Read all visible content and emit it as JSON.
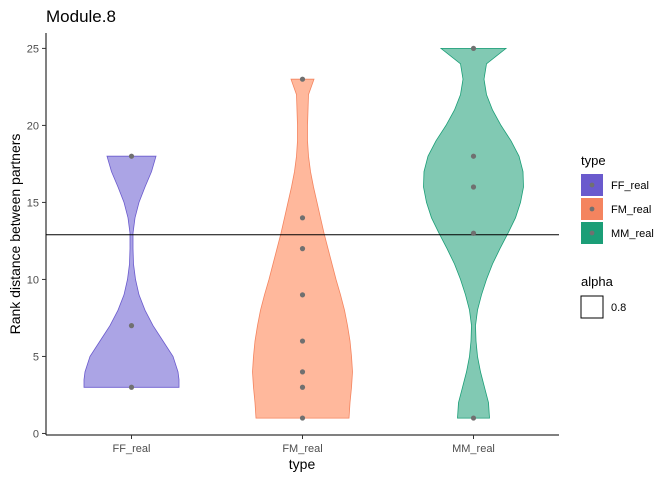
{
  "chart_data": {
    "type": "violin",
    "title": "Module.8",
    "xlabel": "type",
    "ylabel": "Rank distance between partners",
    "ylim": [
      -0.1,
      26
    ],
    "yticks": [
      0,
      5,
      10,
      15,
      20,
      25
    ],
    "categories": [
      "FF_real",
      "FM_real",
      "MM_real"
    ],
    "reference_line_y": 12.9,
    "point_color": "#707070",
    "series": [
      {
        "name": "FF_real",
        "fill": "#ABA4E5",
        "stroke": "#6A5ACD",
        "points": [
          3,
          7,
          18
        ],
        "violin": [
          [
            3,
            0.95
          ],
          [
            3.5,
            0.95
          ],
          [
            4,
            0.93
          ],
          [
            5,
            0.83
          ],
          [
            6,
            0.63
          ],
          [
            7,
            0.43
          ],
          [
            8,
            0.27
          ],
          [
            9,
            0.15
          ],
          [
            10,
            0.08
          ],
          [
            11,
            0.04
          ],
          [
            12,
            0.03
          ],
          [
            13,
            0.03
          ],
          [
            14,
            0.07
          ],
          [
            15,
            0.15
          ],
          [
            16,
            0.27
          ],
          [
            17,
            0.4
          ],
          [
            18,
            0.49
          ]
        ]
      },
      {
        "name": "FM_real",
        "fill": "#FFB89C",
        "stroke": "#F4845F",
        "points": [
          1,
          3,
          4,
          6,
          9,
          12,
          14,
          23
        ],
        "violin": [
          [
            1,
            0.93
          ],
          [
            2,
            0.95
          ],
          [
            3,
            0.98
          ],
          [
            4,
            1.0
          ],
          [
            5,
            0.98
          ],
          [
            6,
            0.95
          ],
          [
            7,
            0.9
          ],
          [
            8,
            0.84
          ],
          [
            9,
            0.76
          ],
          [
            10,
            0.67
          ],
          [
            11,
            0.59
          ],
          [
            12,
            0.51
          ],
          [
            13,
            0.43
          ],
          [
            14,
            0.36
          ],
          [
            15,
            0.29
          ],
          [
            16,
            0.22
          ],
          [
            17,
            0.16
          ],
          [
            18,
            0.12
          ],
          [
            19,
            0.1
          ],
          [
            20,
            0.1
          ],
          [
            21,
            0.11
          ],
          [
            22,
            0.12
          ],
          [
            23,
            0.23
          ]
        ]
      },
      {
        "name": "MM_real",
        "fill": "#81C9B3",
        "stroke": "#1B9E77",
        "points": [
          1,
          13,
          16,
          18,
          25
        ],
        "violin": [
          [
            1,
            0.32
          ],
          [
            2,
            0.3
          ],
          [
            3,
            0.22
          ],
          [
            4,
            0.14
          ],
          [
            5,
            0.08
          ],
          [
            6,
            0.05
          ],
          [
            7,
            0.04
          ],
          [
            8,
            0.08
          ],
          [
            9,
            0.16
          ],
          [
            10,
            0.26
          ],
          [
            11,
            0.38
          ],
          [
            12,
            0.53
          ],
          [
            13,
            0.69
          ],
          [
            14,
            0.84
          ],
          [
            15,
            0.94
          ],
          [
            16,
            1.0
          ],
          [
            17,
            0.99
          ],
          [
            18,
            0.91
          ],
          [
            19,
            0.75
          ],
          [
            20,
            0.55
          ],
          [
            21,
            0.38
          ],
          [
            22,
            0.26
          ],
          [
            23,
            0.21
          ],
          [
            24,
            0.26
          ],
          [
            25,
            0.65
          ]
        ]
      }
    ],
    "legend": {
      "position": "right",
      "title": "type",
      "entries": [
        "FF_real",
        "FM_real",
        "MM_real"
      ],
      "alpha_title": "alpha",
      "alpha_entry": "0.8"
    },
    "grid": false
  }
}
